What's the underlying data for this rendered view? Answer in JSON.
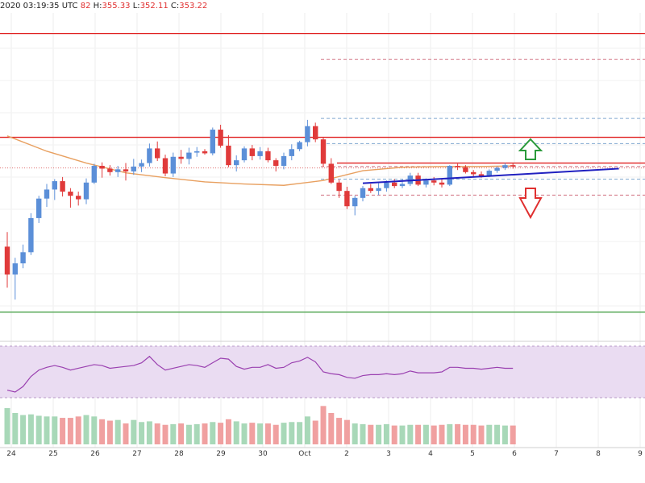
{
  "header": {
    "timestamp": "2020 03:19:35 UTC",
    "open_tail": "82",
    "h_label": "H:",
    "h_value": "355.33",
    "l_label": "L:",
    "l_value": "352.11",
    "c_label": "C:",
    "c_value": "353.22"
  },
  "colors": {
    "up": "#5b8fd8",
    "down": "#e03a3a",
    "ma": "#e8a060",
    "resistance": "#e02020",
    "support": "#3a9a3a",
    "trendline": "#2020c0",
    "rsi": "#9a40b0",
    "rsi_band": "#eadcf2",
    "vol_up": "#a8d8b8",
    "vol_down": "#f0a0a0",
    "arrow_up": "#2a9a3a",
    "arrow_down": "#e03030"
  },
  "chart_data": {
    "type": "candlestick",
    "x_labels": [
      "24",
      "25",
      "26",
      "27",
      "28",
      "29",
      "30",
      "Oct",
      "2",
      "3",
      "4",
      "5",
      "6",
      "7",
      "8",
      "9"
    ],
    "ylim": [
      326,
      372
    ],
    "candles": [
      [
        338.9,
        341.0,
        333.0,
        334.9
      ],
      [
        334.9,
        337.3,
        331.3,
        336.5
      ],
      [
        336.5,
        339.2,
        335.8,
        338.1
      ],
      [
        338.1,
        343.7,
        337.7,
        343.0
      ],
      [
        343.0,
        346.2,
        342.3,
        345.8
      ],
      [
        345.8,
        347.9,
        344.6,
        347.1
      ],
      [
        347.1,
        348.6,
        345.6,
        348.3
      ],
      [
        348.3,
        348.9,
        346.1,
        346.8
      ],
      [
        346.8,
        347.3,
        344.5,
        346.2
      ],
      [
        346.2,
        346.8,
        344.8,
        345.7
      ],
      [
        345.7,
        348.7,
        345.0,
        348.1
      ],
      [
        348.1,
        350.8,
        347.9,
        350.5
      ],
      [
        350.5,
        351.0,
        348.8,
        350.1
      ],
      [
        350.1,
        350.6,
        349.1,
        349.6
      ],
      [
        349.6,
        350.5,
        348.9,
        350.0
      ],
      [
        350.0,
        350.9,
        348.4,
        349.7
      ],
      [
        349.7,
        351.5,
        349.2,
        350.4
      ],
      [
        350.4,
        351.4,
        349.6,
        350.9
      ],
      [
        350.9,
        353.7,
        350.4,
        353.0
      ],
      [
        353.0,
        354.0,
        351.2,
        351.6
      ],
      [
        351.6,
        352.1,
        349.0,
        349.4
      ],
      [
        349.4,
        352.4,
        348.9,
        351.8
      ],
      [
        351.8,
        352.8,
        350.8,
        351.5
      ],
      [
        351.5,
        353.1,
        350.7,
        352.4
      ],
      [
        352.4,
        353.2,
        351.8,
        352.6
      ],
      [
        352.6,
        352.9,
        352.1,
        352.3
      ],
      [
        352.3,
        356.0,
        352.0,
        355.7
      ],
      [
        355.7,
        356.4,
        353.1,
        353.4
      ],
      [
        353.4,
        354.9,
        350.3,
        350.6
      ],
      [
        350.6,
        352.0,
        349.7,
        351.3
      ],
      [
        351.3,
        353.3,
        351.0,
        353.0
      ],
      [
        353.0,
        353.5,
        351.3,
        351.9
      ],
      [
        351.9,
        353.2,
        351.4,
        352.6
      ],
      [
        352.6,
        353.1,
        351.0,
        351.3
      ],
      [
        351.3,
        351.6,
        349.7,
        350.5
      ],
      [
        350.5,
        352.4,
        350.0,
        351.9
      ],
      [
        351.9,
        353.6,
        351.3,
        352.9
      ],
      [
        352.9,
        354.1,
        352.6,
        353.9
      ],
      [
        353.9,
        357.1,
        353.3,
        356.2
      ],
      [
        356.2,
        356.7,
        353.9,
        354.3
      ],
      [
        354.3,
        354.6,
        350.4,
        350.8
      ],
      [
        350.8,
        351.6,
        347.9,
        348.1
      ],
      [
        348.1,
        348.5,
        345.9,
        346.9
      ],
      [
        346.9,
        347.5,
        344.3,
        344.7
      ],
      [
        344.7,
        346.2,
        343.4,
        345.9
      ],
      [
        345.9,
        347.6,
        345.4,
        347.3
      ],
      [
        347.3,
        347.9,
        346.6,
        346.9
      ],
      [
        346.9,
        348.0,
        346.3,
        347.3
      ],
      [
        347.3,
        348.4,
        346.8,
        348.1
      ],
      [
        348.1,
        348.6,
        347.3,
        347.6
      ],
      [
        347.6,
        348.6,
        347.3,
        347.9
      ],
      [
        347.9,
        349.5,
        347.6,
        349.1
      ],
      [
        349.1,
        349.5,
        347.6,
        347.8
      ],
      [
        347.8,
        348.7,
        347.4,
        348.4
      ],
      [
        348.4,
        348.9,
        347.7,
        348.1
      ],
      [
        348.1,
        348.6,
        347.4,
        347.8
      ],
      [
        347.8,
        350.6,
        347.6,
        350.5
      ],
      [
        350.5,
        350.8,
        349.9,
        350.3
      ],
      [
        350.3,
        350.6,
        349.4,
        349.6
      ],
      [
        349.6,
        349.9,
        349.0,
        349.3
      ],
      [
        349.3,
        349.7,
        348.8,
        349.0
      ],
      [
        349.0,
        350.0,
        348.9,
        349.8
      ],
      [
        349.8,
        350.4,
        349.5,
        350.2
      ],
      [
        350.2,
        350.9,
        349.9,
        350.6
      ],
      [
        350.6,
        350.9,
        350.1,
        350.4
      ]
    ],
    "moving_average": [
      [
        0,
        354.8
      ],
      [
        5,
        352.6
      ],
      [
        10,
        350.9
      ],
      [
        15,
        349.5
      ],
      [
        20,
        348.8
      ],
      [
        25,
        348.2
      ],
      [
        30,
        347.9
      ],
      [
        35,
        347.7
      ],
      [
        40,
        348.4
      ],
      [
        45,
        349.8
      ],
      [
        50,
        350.3
      ],
      [
        55,
        350.4
      ],
      [
        60,
        350.4
      ],
      [
        64,
        350.5
      ]
    ],
    "resistance_levels": [
      369.5,
      354.6,
      350.9
    ],
    "support_level": 329.5,
    "dashed_levels_red": [
      365.8,
      350.4,
      346.3
    ],
    "dashed_levels_blue": [
      357.3,
      353.7,
      348.6
    ],
    "trendline": [
      [
        0,
        348.0
      ],
      [
        6.3,
        350.1
      ]
    ],
    "rsi": [
      30,
      28,
      34,
      45,
      52,
      55,
      57,
      55,
      52,
      54,
      56,
      58,
      57,
      54,
      55,
      56,
      57,
      60,
      67,
      58,
      52,
      54,
      56,
      58,
      57,
      55,
      60,
      65,
      64,
      56,
      53,
      55,
      55,
      58,
      54,
      55,
      60,
      62,
      66,
      61,
      50,
      48,
      47,
      44,
      43,
      46,
      47,
      47,
      48,
      47,
      48,
      51,
      49,
      49,
      49,
      50,
      55,
      55,
      54,
      54,
      53,
      54,
      55,
      54,
      54
    ],
    "volume": [
      52,
      45,
      42,
      43,
      41,
      40,
      40,
      38,
      38,
      40,
      42,
      40,
      36,
      34,
      35,
      30,
      35,
      32,
      33,
      30,
      28,
      29,
      30,
      28,
      29,
      30,
      32,
      31,
      36,
      33,
      30,
      31,
      30,
      30,
      28,
      31,
      32,
      32,
      40,
      34,
      55,
      45,
      38,
      35,
      30,
      29,
      28,
      28,
      29,
      27,
      27,
      28,
      28,
      28,
      27,
      28,
      29,
      29,
      28,
      28,
      27,
      28,
      28,
      27,
      27
    ],
    "volume_up_flags": [
      1,
      1,
      1,
      1,
      1,
      1,
      1,
      0,
      0,
      0,
      1,
      1,
      0,
      0,
      1,
      0,
      1,
      1,
      1,
      0,
      0,
      1,
      0,
      1,
      1,
      0,
      1,
      0,
      0,
      1,
      1,
      0,
      1,
      0,
      0,
      1,
      1,
      1,
      1,
      0,
      0,
      0,
      0,
      0,
      1,
      1,
      0,
      1,
      1,
      0,
      1,
      1,
      0,
      1,
      0,
      0,
      1,
      0,
      0,
      0,
      0,
      1,
      1,
      1,
      0
    ]
  }
}
